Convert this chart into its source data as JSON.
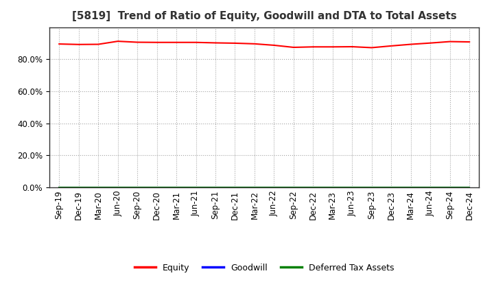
{
  "title": "[5819]  Trend of Ratio of Equity, Goodwill and DTA to Total Assets",
  "x_labels": [
    "Sep-19",
    "Dec-19",
    "Mar-20",
    "Jun-20",
    "Sep-20",
    "Dec-20",
    "Mar-21",
    "Jun-21",
    "Sep-21",
    "Dec-21",
    "Mar-22",
    "Jun-22",
    "Sep-22",
    "Dec-22",
    "Mar-23",
    "Jun-23",
    "Sep-23",
    "Dec-23",
    "Mar-24",
    "Jun-24",
    "Sep-24",
    "Dec-24"
  ],
  "equity": [
    0.895,
    0.892,
    0.893,
    0.912,
    0.906,
    0.905,
    0.905,
    0.905,
    0.902,
    0.9,
    0.896,
    0.887,
    0.874,
    0.877,
    0.877,
    0.878,
    0.872,
    0.883,
    0.893,
    0.901,
    0.91,
    0.908
  ],
  "goodwill": [
    0.0,
    0.0,
    0.0,
    0.0,
    0.0,
    0.0,
    0.0,
    0.0,
    0.0,
    0.0,
    0.0,
    0.0,
    0.0,
    0.0,
    0.0,
    0.0,
    0.0,
    0.0,
    0.0,
    0.0,
    0.0,
    0.0
  ],
  "dta": [
    0.0,
    0.0,
    0.0,
    0.0,
    0.0,
    0.0,
    0.0,
    0.0,
    0.0,
    0.0,
    0.0,
    0.0,
    0.0,
    0.0,
    0.0,
    0.0,
    0.0,
    0.0,
    0.0,
    0.0,
    0.0,
    0.0
  ],
  "equity_color": "#ff0000",
  "goodwill_color": "#0000ff",
  "dta_color": "#008000",
  "ylim": [
    0.0,
    1.0
  ],
  "yticks": [
    0.0,
    0.2,
    0.4,
    0.6,
    0.8
  ],
  "background_color": "#ffffff",
  "grid_color": "#999999",
  "title_fontsize": 11,
  "tick_fontsize": 8.5,
  "legend_labels": [
    "Equity",
    "Goodwill",
    "Deferred Tax Assets"
  ]
}
